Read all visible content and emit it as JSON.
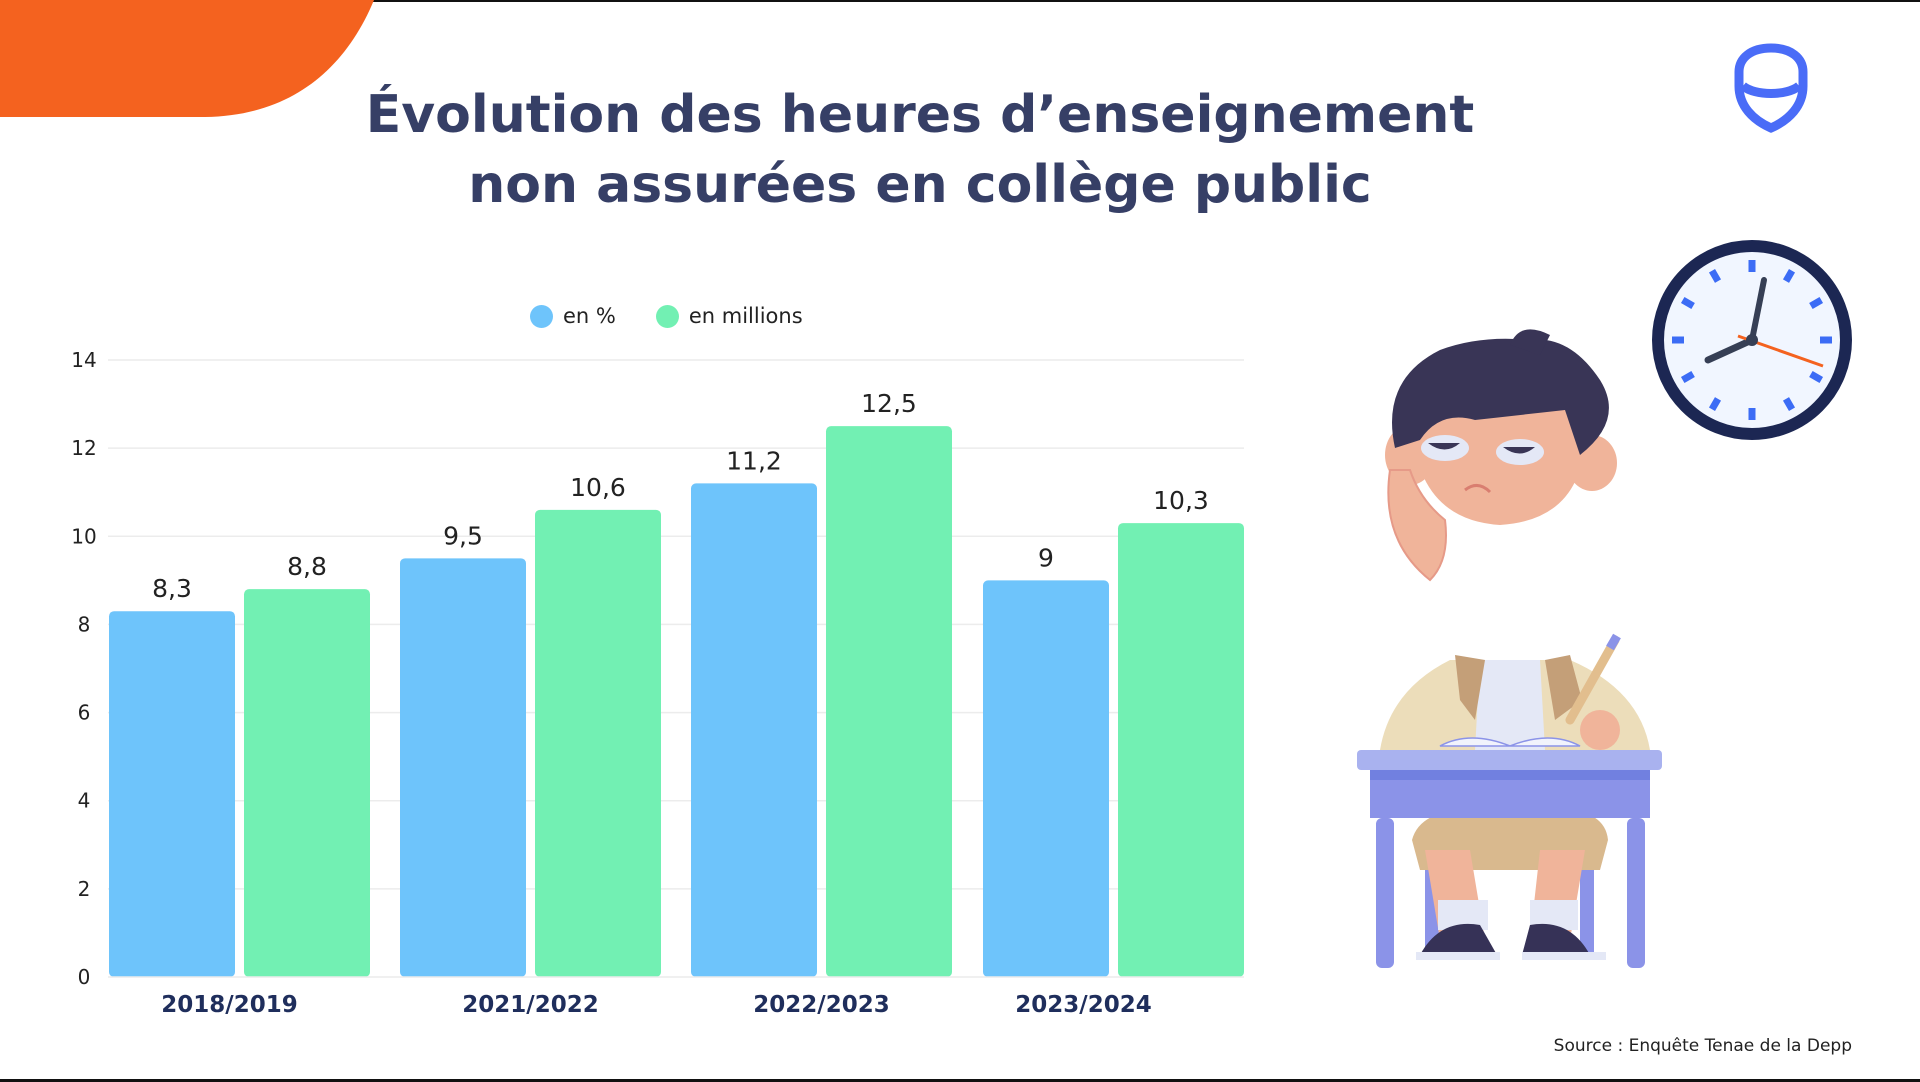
{
  "title": {
    "line1": "Évolution des heures d’enseignement",
    "line2": "non assurées en collège public"
  },
  "source": "Source : Enquête Tenae de la Depp",
  "colors": {
    "blue": "#6EC4FB",
    "green": "#72F0B3",
    "title": "#363F66",
    "orange": "#F4621F",
    "logo": "#4A6CF7"
  },
  "chart_data": {
    "type": "bar",
    "title": "Évolution des heures d’enseignement non assurées en collège public",
    "categories": [
      "2018/2019",
      "2021/2022",
      "2022/2023",
      "2023/2024"
    ],
    "series": [
      {
        "name": "en %",
        "values": [
          8.3,
          9.5,
          11.2,
          9
        ],
        "labels": [
          "8,3",
          "9,5",
          "11,2",
          "9"
        ],
        "color": "#6EC4FB"
      },
      {
        "name": "en millions",
        "values": [
          8.8,
          10.6,
          12.5,
          10.3
        ],
        "labels": [
          "8,8",
          "10,6",
          "12,5",
          "10,3"
        ],
        "color": "#72F0B3"
      }
    ],
    "yticks": [
      0,
      2,
      4,
      6,
      8,
      10,
      12,
      14
    ],
    "ylim": [
      0,
      14
    ],
    "xlabel": "",
    "ylabel": "",
    "grid": true,
    "legend": "top-center"
  }
}
